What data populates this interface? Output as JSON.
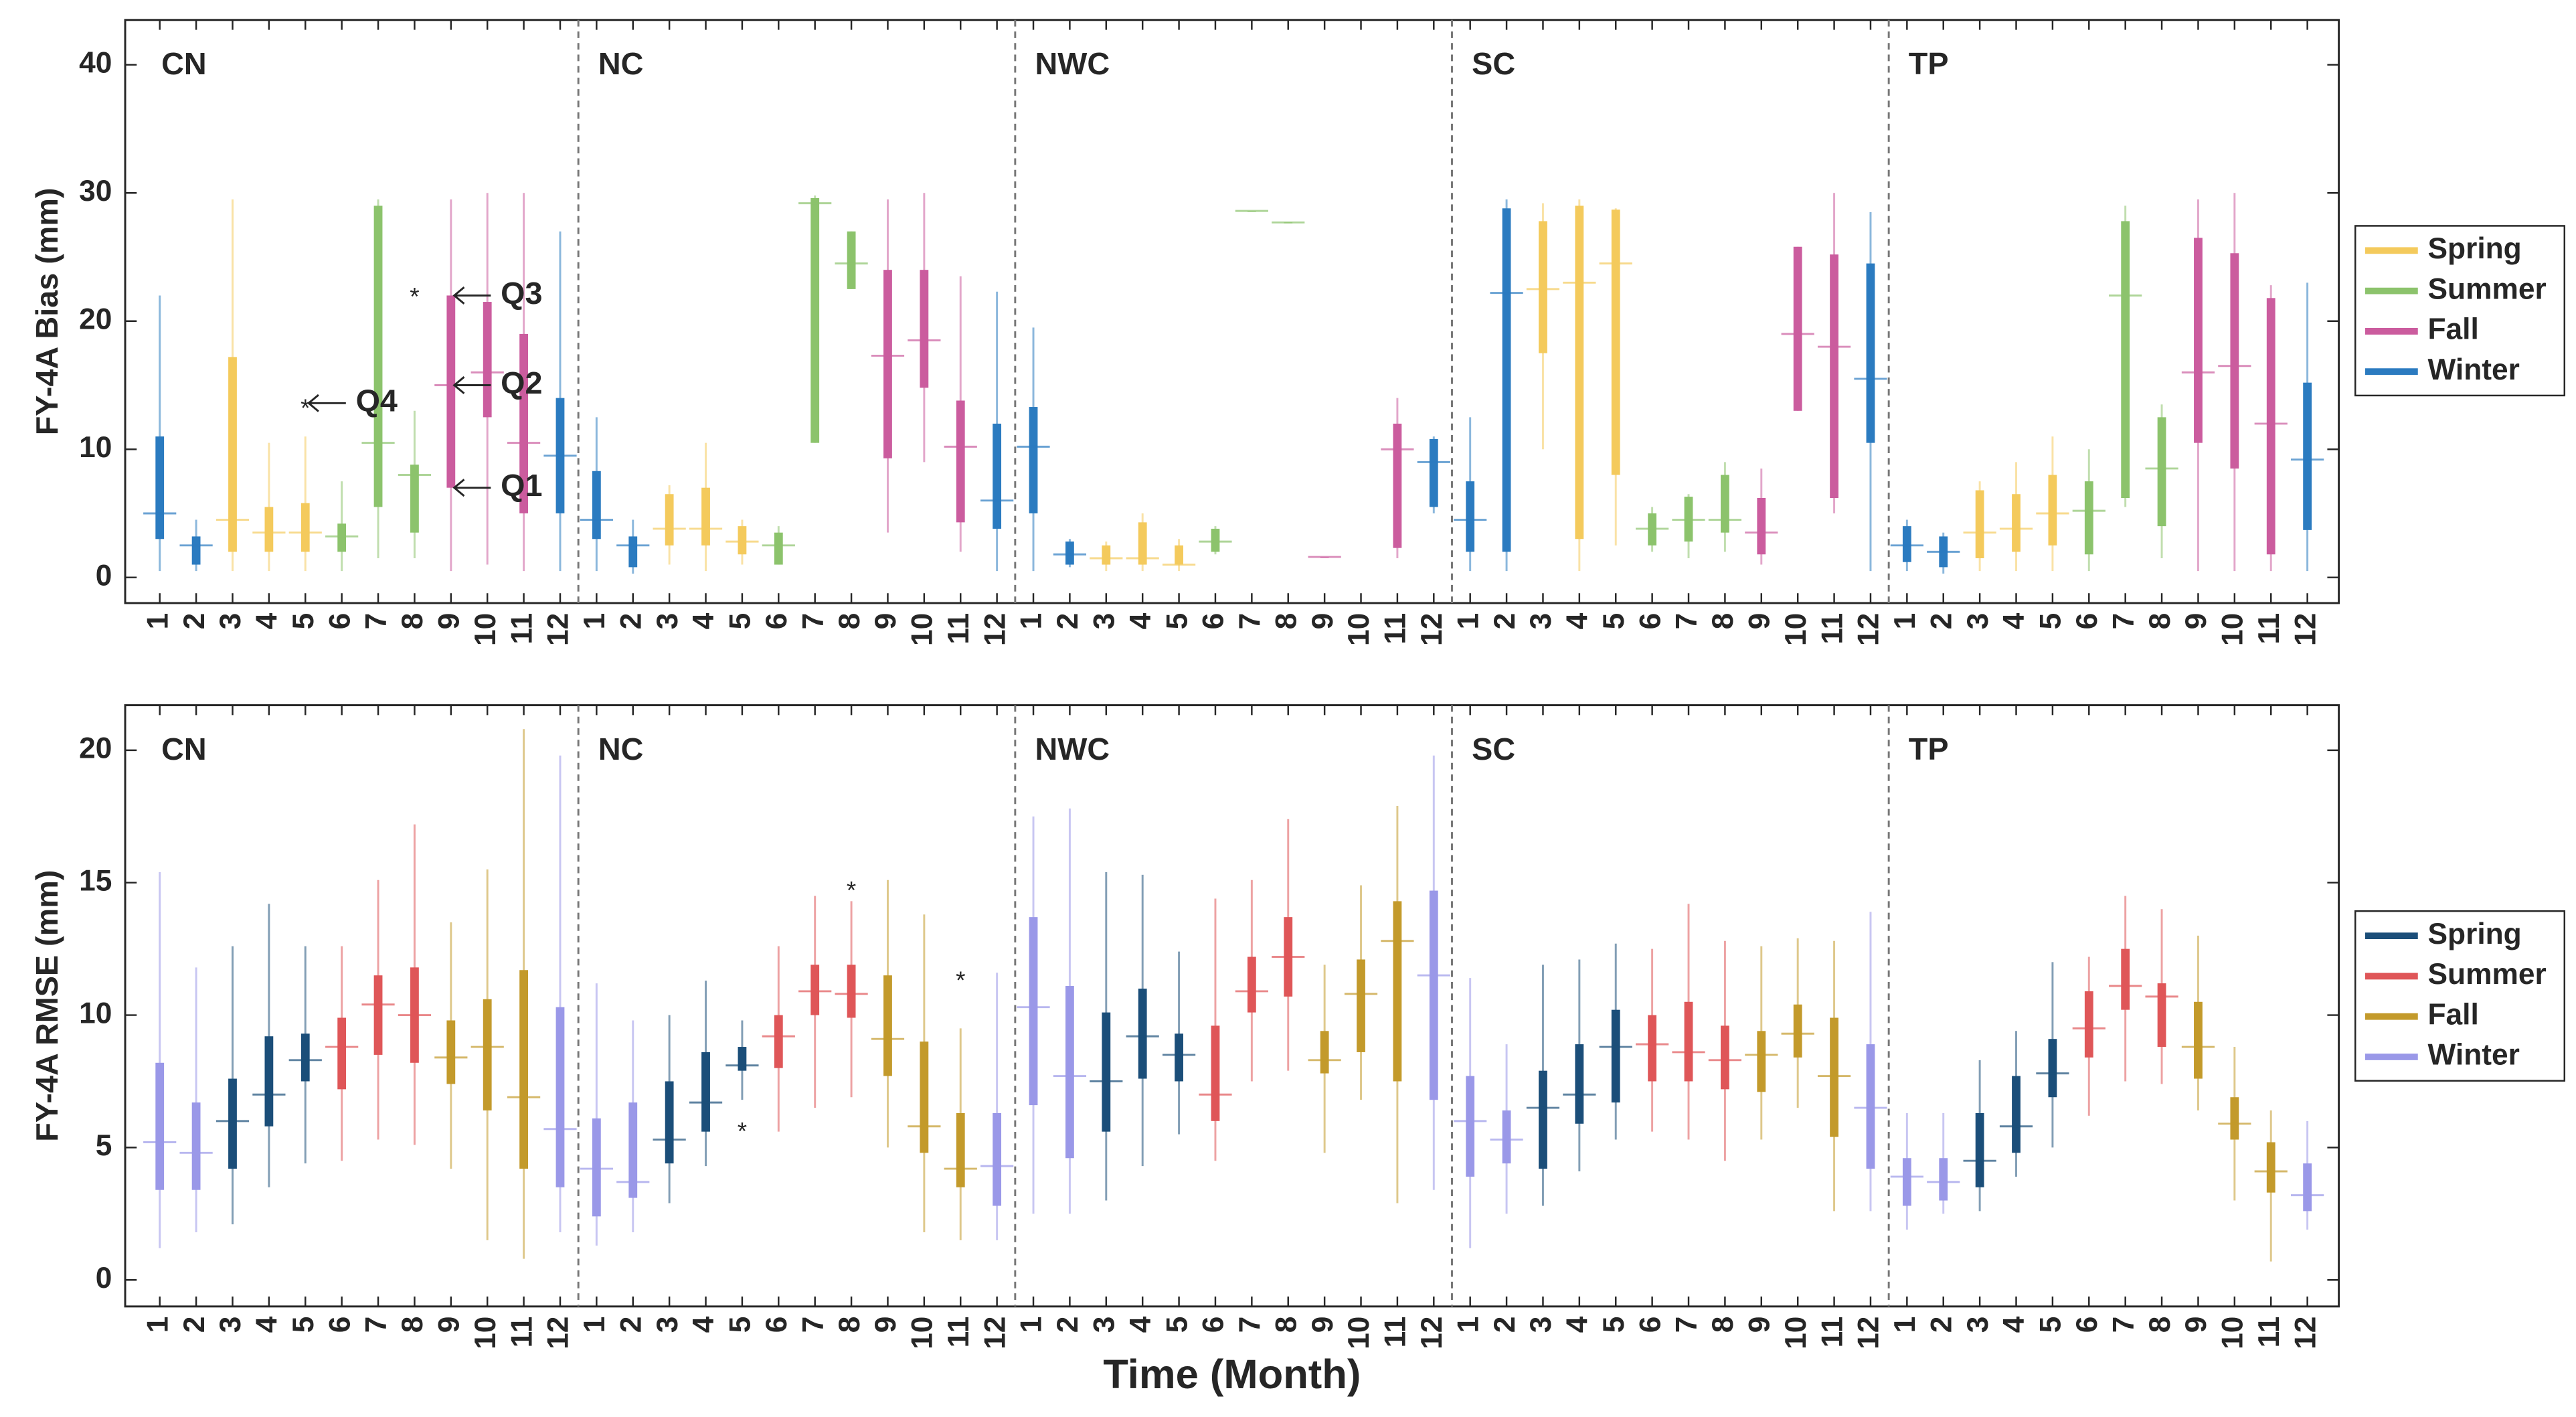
{
  "xlabel": "Time (Month)",
  "chart_data": [
    {
      "type": "box",
      "ylabel": "FY-4A Bias (mm)",
      "ylim": [
        -2,
        43.5
      ],
      "yticks": [
        0,
        10,
        20,
        30,
        40
      ],
      "categories": [
        "1",
        "2",
        "3",
        "4",
        "5",
        "6",
        "7",
        "8",
        "9",
        "10",
        "11",
        "12"
      ],
      "series": [
        {
          "name": "Spring",
          "color": "#f4ca5c",
          "months": [
            "3",
            "4",
            "5"
          ]
        },
        {
          "name": "Summer",
          "color": "#8cc36c",
          "months": [
            "6",
            "7",
            "8"
          ]
        },
        {
          "name": "Fall",
          "color": "#cb5c9e",
          "months": [
            "9",
            "10",
            "11"
          ]
        },
        {
          "name": "Winter",
          "color": "#2b7bc0",
          "months": [
            "12",
            "1",
            "2"
          ]
        }
      ],
      "regions": [
        {
          "name": "CN",
          "boxes": [
            [
              0.5,
              3,
              5,
              11,
              22
            ],
            [
              0.5,
              1,
              2.5,
              3.2,
              4.5
            ],
            [
              0.5,
              2,
              4.5,
              17.2,
              29.5
            ],
            [
              0.5,
              2,
              3.5,
              5.5,
              10.5
            ],
            [
              0.5,
              2,
              3.5,
              5.8,
              11
            ],
            [
              0.5,
              2,
              3.2,
              4.2,
              7.5
            ],
            [
              1.5,
              5.5,
              10.5,
              29,
              29.5
            ],
            [
              1.5,
              3.5,
              8,
              8.8,
              13
            ],
            [
              0.5,
              7,
              15,
              22,
              29.5
            ],
            [
              1,
              12.5,
              16,
              21.5,
              30
            ],
            [
              0.5,
              5,
              10.5,
              19,
              30
            ],
            [
              0.5,
              5,
              9.5,
              14,
              27
            ]
          ],
          "outliers": {
            "5": [
              13.6
            ],
            "8": [
              22.3
            ]
          }
        },
        {
          "name": "NC",
          "boxes": [
            [
              0.5,
              3,
              4.5,
              8.3,
              12.5
            ],
            [
              0.3,
              0.8,
              2.5,
              3.2,
              4.5
            ],
            [
              1,
              2.5,
              3.8,
              6.5,
              7.2
            ],
            [
              0.5,
              2.5,
              3.8,
              7,
              10.5
            ],
            [
              1,
              1.8,
              2.8,
              4,
              4.5
            ],
            [
              1,
              1,
              2.5,
              3.5,
              4
            ],
            [
              10.5,
              10.5,
              29.2,
              29.6,
              29.8
            ],
            [
              22.5,
              22.5,
              24.5,
              27,
              27
            ],
            [
              3.5,
              9.3,
              17.3,
              24,
              29.5
            ],
            [
              9,
              14.8,
              18.5,
              24,
              30
            ],
            [
              2,
              4.3,
              10.2,
              13.8,
              23.5
            ],
            [
              0.5,
              3.8,
              6,
              12,
              22.3
            ]
          ]
        },
        {
          "name": "NWC",
          "boxes": [
            [
              0.5,
              5,
              10.2,
              13.3,
              19.5
            ],
            [
              0.8,
              1,
              1.8,
              2.8,
              3
            ],
            [
              0.5,
              1,
              1.5,
              2.5,
              2.8
            ],
            [
              0.5,
              1,
              1.5,
              4.3,
              5
            ],
            [
              0.5,
              1,
              1,
              2.5,
              3
            ],
            [
              1.8,
              2,
              2.8,
              3.8,
              4
            ],
            [
              28.6,
              28.6,
              28.6,
              28.6,
              28.6
            ],
            [
              27.7,
              27.7,
              27.7,
              27.7,
              27.7
            ],
            [
              1.6,
              1.6,
              1.6,
              1.6,
              1.6
            ],
            null,
            [
              1.5,
              2.3,
              10,
              12,
              14
            ],
            [
              5,
              5.5,
              9,
              10.8,
              11
            ]
          ]
        },
        {
          "name": "SC",
          "boxes": [
            [
              0.5,
              2,
              4.5,
              7.5,
              12.5
            ],
            [
              0.5,
              2,
              22.2,
              28.8,
              29.5
            ],
            [
              10,
              17.5,
              22.5,
              27.8,
              29.2
            ],
            [
              0.5,
              3,
              23,
              29,
              29.5
            ],
            [
              2.5,
              8,
              24.5,
              28.7,
              28.8
            ],
            [
              2,
              2.5,
              3.8,
              5,
              5.5
            ],
            [
              1.5,
              2.8,
              4.5,
              6.3,
              6.5
            ],
            [
              2,
              3.5,
              4.5,
              8,
              9
            ],
            [
              1,
              1.8,
              3.5,
              6.2,
              8.5
            ],
            [
              13,
              13,
              19,
              25.8,
              25.8
            ],
            [
              5,
              6.2,
              18,
              25.2,
              30
            ],
            [
              0.5,
              10.5,
              15.5,
              24.5,
              28.5
            ]
          ]
        },
        {
          "name": "TP",
          "boxes": [
            [
              0.5,
              1.2,
              2.5,
              4,
              4.5
            ],
            [
              0.3,
              0.8,
              2,
              3.2,
              3.5
            ],
            [
              0.5,
              1.5,
              3.5,
              6.8,
              7.5
            ],
            [
              0.5,
              2,
              3.8,
              6.5,
              9
            ],
            [
              0.5,
              2.5,
              5,
              8,
              11
            ],
            [
              0.5,
              1.8,
              5.2,
              7.5,
              10
            ],
            [
              5.5,
              6.2,
              22,
              27.8,
              29
            ],
            [
              1.5,
              4,
              8.5,
              12.5,
              13.5
            ],
            [
              0.5,
              10.5,
              16,
              26.5,
              29.5
            ],
            [
              0.5,
              8.5,
              16.5,
              25.3,
              30
            ],
            [
              0.5,
              1.8,
              12,
              21.8,
              22.8
            ],
            [
              0.5,
              3.7,
              9.2,
              15.2,
              23
            ]
          ]
        }
      ],
      "annotations": [
        {
          "text": "Q3"
        },
        {
          "text": "Q2"
        },
        {
          "text": "Q1"
        },
        {
          "text": "Q4"
        }
      ]
    },
    {
      "type": "box",
      "ylabel": "FY-4A RMSE (mm)",
      "ylim": [
        -1,
        21.7
      ],
      "yticks": [
        0,
        5,
        10,
        15,
        20
      ],
      "categories": [
        "1",
        "2",
        "3",
        "4",
        "5",
        "6",
        "7",
        "8",
        "9",
        "10",
        "11",
        "12"
      ],
      "series": [
        {
          "name": "Spring",
          "color": "#1b4e79",
          "months": [
            "3",
            "4",
            "5"
          ]
        },
        {
          "name": "Summer",
          "color": "#df5658",
          "months": [
            "6",
            "7",
            "8"
          ]
        },
        {
          "name": "Fall",
          "color": "#c39a2b",
          "months": [
            "9",
            "10",
            "11"
          ]
        },
        {
          "name": "Winter",
          "color": "#9a98e8",
          "months": [
            "12",
            "1",
            "2"
          ]
        }
      ],
      "regions": [
        {
          "name": "CN",
          "boxes": [
            [
              1.2,
              3.4,
              5.2,
              8.2,
              15.4
            ],
            [
              1.8,
              3.4,
              4.8,
              6.7,
              11.8
            ],
            [
              2.1,
              4.2,
              6,
              7.6,
              12.6
            ],
            [
              3.5,
              5.8,
              7,
              9.2,
              14.2
            ],
            [
              4.4,
              7.5,
              8.3,
              9.3,
              12.6
            ],
            [
              4.5,
              7.2,
              8.8,
              9.9,
              12.6
            ],
            [
              5.3,
              8.5,
              10.4,
              11.5,
              15.1
            ],
            [
              5.1,
              8.2,
              10,
              11.8,
              17.2
            ],
            [
              4.2,
              7.4,
              8.4,
              9.8,
              13.5
            ],
            [
              1.5,
              6.4,
              8.8,
              10.6,
              15.5
            ],
            [
              0.8,
              4.2,
              6.9,
              11.7,
              20.8
            ],
            [
              1.8,
              3.5,
              5.7,
              10.3,
              19.8
            ]
          ]
        },
        {
          "name": "NC",
          "boxes": [
            [
              1.3,
              2.4,
              4.2,
              6.1,
              11.2
            ],
            [
              1.8,
              3.1,
              3.7,
              6.7,
              9.8
            ],
            [
              2.9,
              4.4,
              5.3,
              7.5,
              10
            ],
            [
              4.3,
              5.6,
              6.7,
              8.6,
              11.3
            ],
            [
              6.8,
              7.9,
              8.1,
              8.8,
              9.8
            ],
            [
              5.6,
              8,
              9.2,
              10,
              12.6
            ],
            [
              6.5,
              10,
              10.9,
              11.9,
              14.5
            ],
            [
              6.9,
              9.9,
              10.8,
              11.9,
              14.3
            ],
            [
              5,
              7.7,
              9.1,
              11.5,
              15.1
            ],
            [
              1.8,
              4.8,
              5.8,
              9,
              13.8
            ],
            [
              1.5,
              3.5,
              4.2,
              6.3,
              9.5
            ],
            [
              1.5,
              2.8,
              4.3,
              6.3,
              11.6
            ]
          ],
          "outliers": {
            "5": [
              5.8
            ],
            "8": [
              14.9
            ],
            "11": [
              11.5
            ]
          }
        },
        {
          "name": "NWC",
          "boxes": [
            [
              2.5,
              6.6,
              10.3,
              13.7,
              17.5
            ],
            [
              2.5,
              4.6,
              7.7,
              11.1,
              17.8
            ],
            [
              3,
              5.6,
              7.5,
              10.1,
              15.4
            ],
            [
              4.3,
              7.6,
              9.2,
              11,
              15.3
            ],
            [
              5.5,
              7.5,
              8.5,
              9.3,
              12.4
            ],
            [
              4.5,
              6,
              7,
              9.6,
              14.4
            ],
            [
              7.5,
              10.1,
              10.9,
              12.2,
              15.1
            ],
            [
              7.9,
              10.7,
              12.2,
              13.7,
              17.4
            ],
            [
              4.8,
              7.8,
              8.3,
              9.4,
              11.9
            ],
            [
              6.8,
              8.6,
              10.8,
              12.1,
              14.9
            ],
            [
              2.9,
              7.5,
              12.8,
              14.3,
              17.9
            ],
            [
              3.4,
              6.8,
              11.5,
              14.7,
              19.8
            ]
          ]
        },
        {
          "name": "SC",
          "boxes": [
            [
              1.2,
              3.9,
              6,
              7.7,
              11.4
            ],
            [
              2.5,
              4.4,
              5.3,
              6.4,
              8.9
            ],
            [
              2.8,
              4.2,
              6.5,
              7.9,
              11.9
            ],
            [
              4.1,
              5.9,
              7,
              8.9,
              12.1
            ],
            [
              5.3,
              6.7,
              8.8,
              10.2,
              12.7
            ],
            [
              5.6,
              7.5,
              8.9,
              10,
              12.5
            ],
            [
              5.3,
              7.5,
              8.6,
              10.5,
              14.2
            ],
            [
              4.5,
              7.2,
              8.3,
              9.6,
              12.8
            ],
            [
              5.3,
              7.1,
              8.5,
              9.4,
              12.6
            ],
            [
              6.5,
              8.4,
              9.3,
              10.4,
              12.9
            ],
            [
              2.6,
              5.4,
              7.7,
              9.9,
              12.8
            ],
            [
              2.6,
              4.2,
              6.5,
              8.9,
              13.9
            ]
          ]
        },
        {
          "name": "TP",
          "boxes": [
            [
              1.9,
              2.8,
              3.9,
              4.6,
              6.3
            ],
            [
              2.5,
              3,
              3.7,
              4.6,
              6.3
            ],
            [
              2.6,
              3.5,
              4.5,
              6.3,
              8.3
            ],
            [
              3.9,
              4.8,
              5.8,
              7.7,
              9.4
            ],
            [
              5,
              6.9,
              7.8,
              9.1,
              12
            ],
            [
              6.2,
              8.4,
              9.5,
              10.9,
              12.2
            ],
            [
              7.5,
              10.2,
              11.1,
              12.5,
              14.5
            ],
            [
              7.4,
              8.8,
              10.7,
              11.2,
              14
            ],
            [
              6.4,
              7.6,
              8.8,
              10.5,
              13
            ],
            [
              3,
              5.3,
              5.9,
              6.9,
              8.8
            ],
            [
              0.7,
              3.3,
              4.1,
              5.2,
              6.4
            ],
            [
              1.9,
              2.6,
              3.2,
              4.4,
              6
            ]
          ]
        }
      ]
    }
  ]
}
